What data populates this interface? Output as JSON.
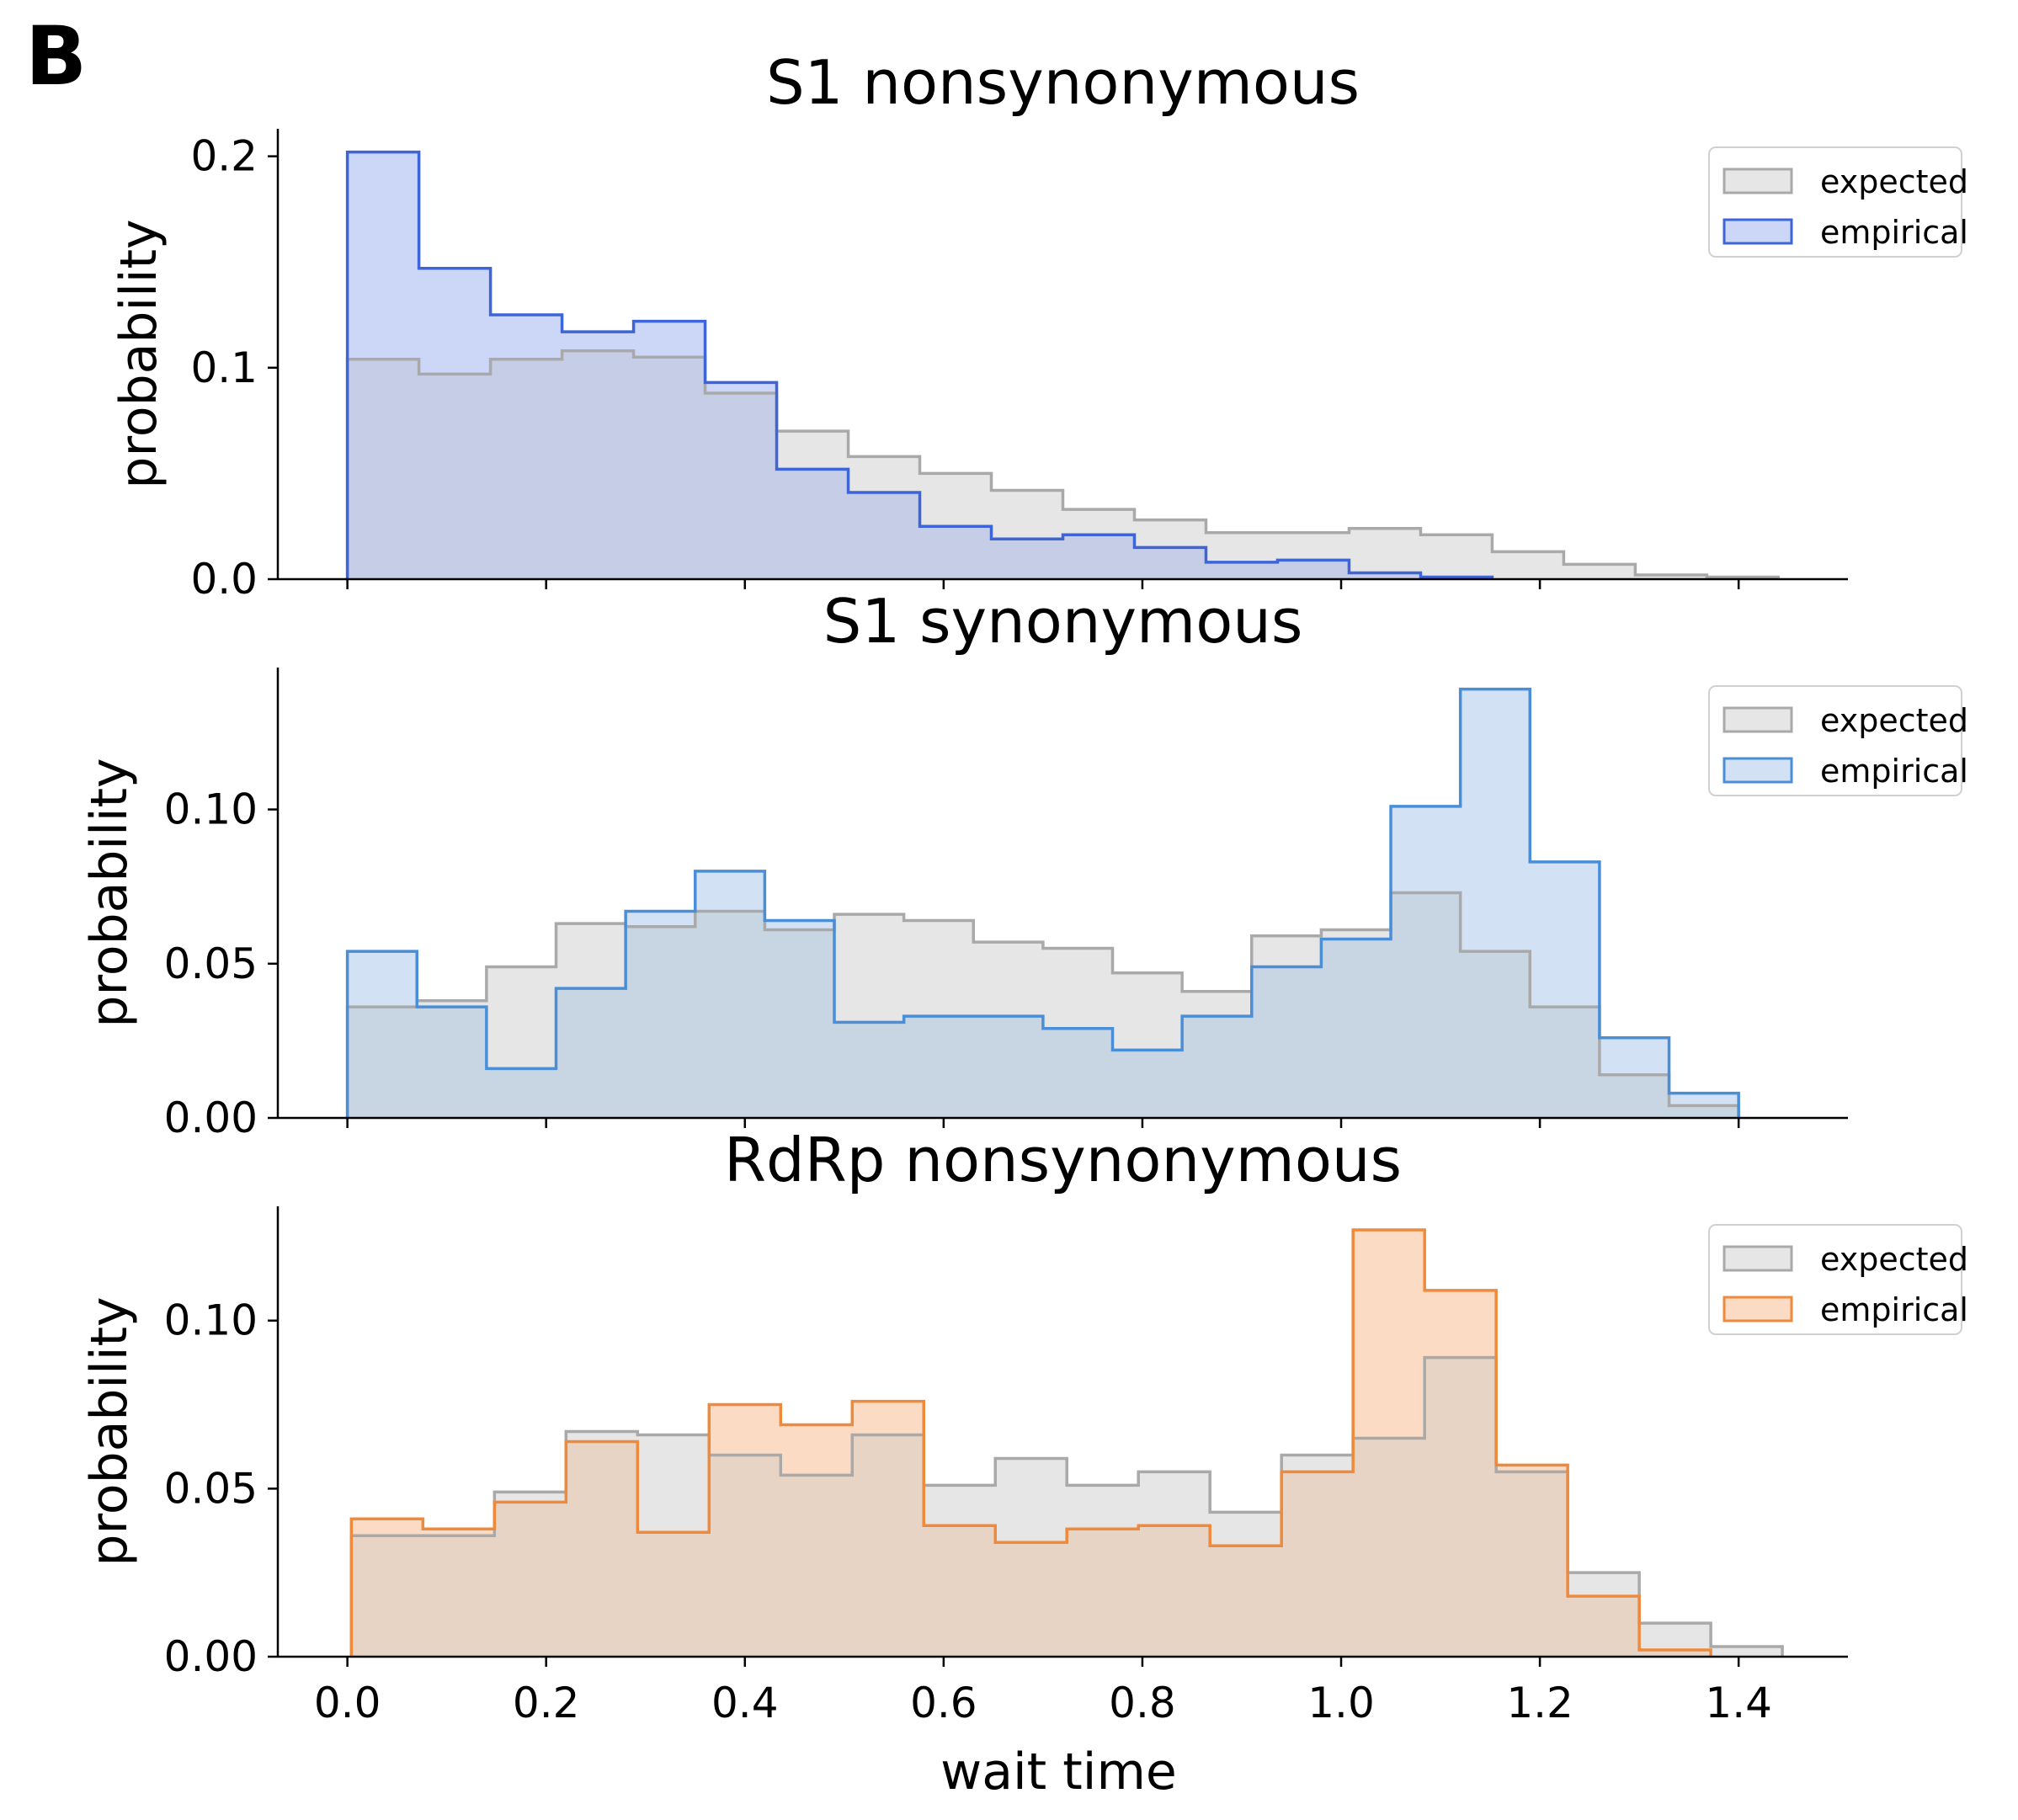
{
  "panel_letter": "B",
  "colors": {
    "expected_fill": "#e6e6e6",
    "expected_edge": "#a9a9a9",
    "s1_nonsyn_edge": "#3d64d8",
    "s1_nonsyn_fill": "#ccd6f6",
    "s1_syn_edge": "#4a8ed8",
    "s1_syn_fill": "#d2e2f4",
    "rdrp_edge": "#ef8a3c",
    "rdrp_fill": "#fbdbc4",
    "overlap_blue": "#c6cde6",
    "overlap_lightblue": "#c8d6e4",
    "overlap_orange": "#e8d4c4"
  },
  "chart_data": [
    {
      "type": "histogram",
      "title": "S1 nonsynonymous",
      "ylabel": "probability",
      "xlabel": "",
      "ylim": [
        0,
        0.213
      ],
      "xlim": [
        -0.07,
        1.51
      ],
      "yticks": [
        0.0,
        0.1,
        0.2
      ],
      "ytick_labels": [
        "0.0",
        "0.1",
        "0.2"
      ],
      "xticks": [
        0.0,
        0.2,
        0.4,
        0.6,
        0.8,
        1.0,
        1.2,
        1.4
      ],
      "show_xtick_labels": false,
      "legend": "top-right",
      "series": [
        {
          "name": "expected",
          "role": "expected",
          "bin_edges": [
            0.0,
            0.072,
            0.144,
            0.216,
            0.288,
            0.36,
            0.432,
            0.504,
            0.576,
            0.648,
            0.72,
            0.792,
            0.864,
            0.936,
            1.008,
            1.08,
            1.152,
            1.224,
            1.296,
            1.368,
            1.44
          ],
          "values": [
            0.104,
            0.097,
            0.104,
            0.108,
            0.105,
            0.088,
            0.07,
            0.058,
            0.05,
            0.042,
            0.033,
            0.028,
            0.022,
            0.022,
            0.024,
            0.021,
            0.013,
            0.007,
            0.002,
            0.001
          ]
        },
        {
          "name": "empirical",
          "role": "empirical",
          "bin_edges": [
            0.0,
            0.072,
            0.144,
            0.216,
            0.288,
            0.36,
            0.432,
            0.504,
            0.576,
            0.648,
            0.72,
            0.792,
            0.864,
            0.936,
            1.008,
            1.08,
            1.152
          ],
          "values": [
            0.202,
            0.147,
            0.125,
            0.117,
            0.122,
            0.093,
            0.052,
            0.041,
            0.025,
            0.019,
            0.021,
            0.015,
            0.008,
            0.009,
            0.003,
            0.001
          ]
        }
      ]
    },
    {
      "type": "histogram",
      "title": "S1 synonymous",
      "ylabel": "probability",
      "xlabel": "",
      "ylim": [
        0,
        0.146
      ],
      "xlim": [
        -0.07,
        1.51
      ],
      "yticks": [
        0.0,
        0.05,
        0.1
      ],
      "ytick_labels": [
        "0.00",
        "0.05",
        "0.10"
      ],
      "xticks": [
        0.0,
        0.2,
        0.4,
        0.6,
        0.8,
        1.0,
        1.2,
        1.4
      ],
      "show_xtick_labels": false,
      "legend": "top-right",
      "series": [
        {
          "name": "expected",
          "role": "expected",
          "bin_edges": [
            0.0,
            0.07,
            0.14,
            0.21,
            0.28,
            0.35,
            0.42,
            0.49,
            0.56,
            0.63,
            0.7,
            0.77,
            0.84,
            0.91,
            0.98,
            1.05,
            1.12,
            1.19,
            1.26,
            1.33,
            1.4
          ],
          "values": [
            0.036,
            0.038,
            0.049,
            0.063,
            0.062,
            0.067,
            0.061,
            0.066,
            0.064,
            0.057,
            0.055,
            0.047,
            0.041,
            0.059,
            0.061,
            0.073,
            0.054,
            0.036,
            0.014,
            0.004
          ]
        },
        {
          "name": "empirical",
          "role": "empirical",
          "bin_edges": [
            0.0,
            0.07,
            0.14,
            0.21,
            0.28,
            0.35,
            0.42,
            0.49,
            0.56,
            0.63,
            0.7,
            0.77,
            0.84,
            0.91,
            0.98,
            1.05,
            1.12,
            1.19,
            1.26,
            1.33,
            1.4
          ],
          "values": [
            0.054,
            0.036,
            0.016,
            0.042,
            0.067,
            0.08,
            0.064,
            0.031,
            0.033,
            0.033,
            0.029,
            0.022,
            0.033,
            0.049,
            0.058,
            0.101,
            0.139,
            0.083,
            0.026,
            0.008
          ]
        }
      ]
    },
    {
      "type": "histogram",
      "title": "RdRp nonsynonymous",
      "ylabel": "probability",
      "xlabel": "wait time",
      "ylim": [
        0,
        0.134
      ],
      "xlim": [
        -0.07,
        1.51
      ],
      "yticks": [
        0.0,
        0.05,
        0.1
      ],
      "ytick_labels": [
        "0.00",
        "0.05",
        "0.10"
      ],
      "xticks": [
        0.0,
        0.2,
        0.4,
        0.6,
        0.8,
        1.0,
        1.2,
        1.4
      ],
      "xtick_labels": [
        "0.0",
        "0.2",
        "0.4",
        "0.6",
        "0.8",
        "1.0",
        "1.2",
        "1.4"
      ],
      "show_xtick_labels": true,
      "legend": "top-right",
      "series": [
        {
          "name": "expected",
          "role": "expected",
          "bin_edges": [
            0.004,
            0.076,
            0.148,
            0.22,
            0.292,
            0.364,
            0.436,
            0.508,
            0.58,
            0.652,
            0.724,
            0.796,
            0.868,
            0.94,
            1.012,
            1.084,
            1.156,
            1.228,
            1.3,
            1.372,
            1.444
          ],
          "values": [
            0.036,
            0.036,
            0.049,
            0.067,
            0.066,
            0.06,
            0.054,
            0.066,
            0.051,
            0.059,
            0.051,
            0.055,
            0.043,
            0.06,
            0.065,
            0.089,
            0.055,
            0.025,
            0.01,
            0.003
          ]
        },
        {
          "name": "empirical",
          "role": "empirical",
          "bin_edges": [
            0.004,
            0.076,
            0.148,
            0.22,
            0.292,
            0.364,
            0.436,
            0.508,
            0.58,
            0.652,
            0.724,
            0.796,
            0.868,
            0.94,
            1.012,
            1.084,
            1.156,
            1.228,
            1.3,
            1.372
          ],
          "values": [
            0.041,
            0.038,
            0.046,
            0.064,
            0.037,
            0.075,
            0.069,
            0.076,
            0.039,
            0.034,
            0.038,
            0.039,
            0.033,
            0.055,
            0.127,
            0.109,
            0.057,
            0.018,
            0.002
          ]
        }
      ]
    }
  ]
}
